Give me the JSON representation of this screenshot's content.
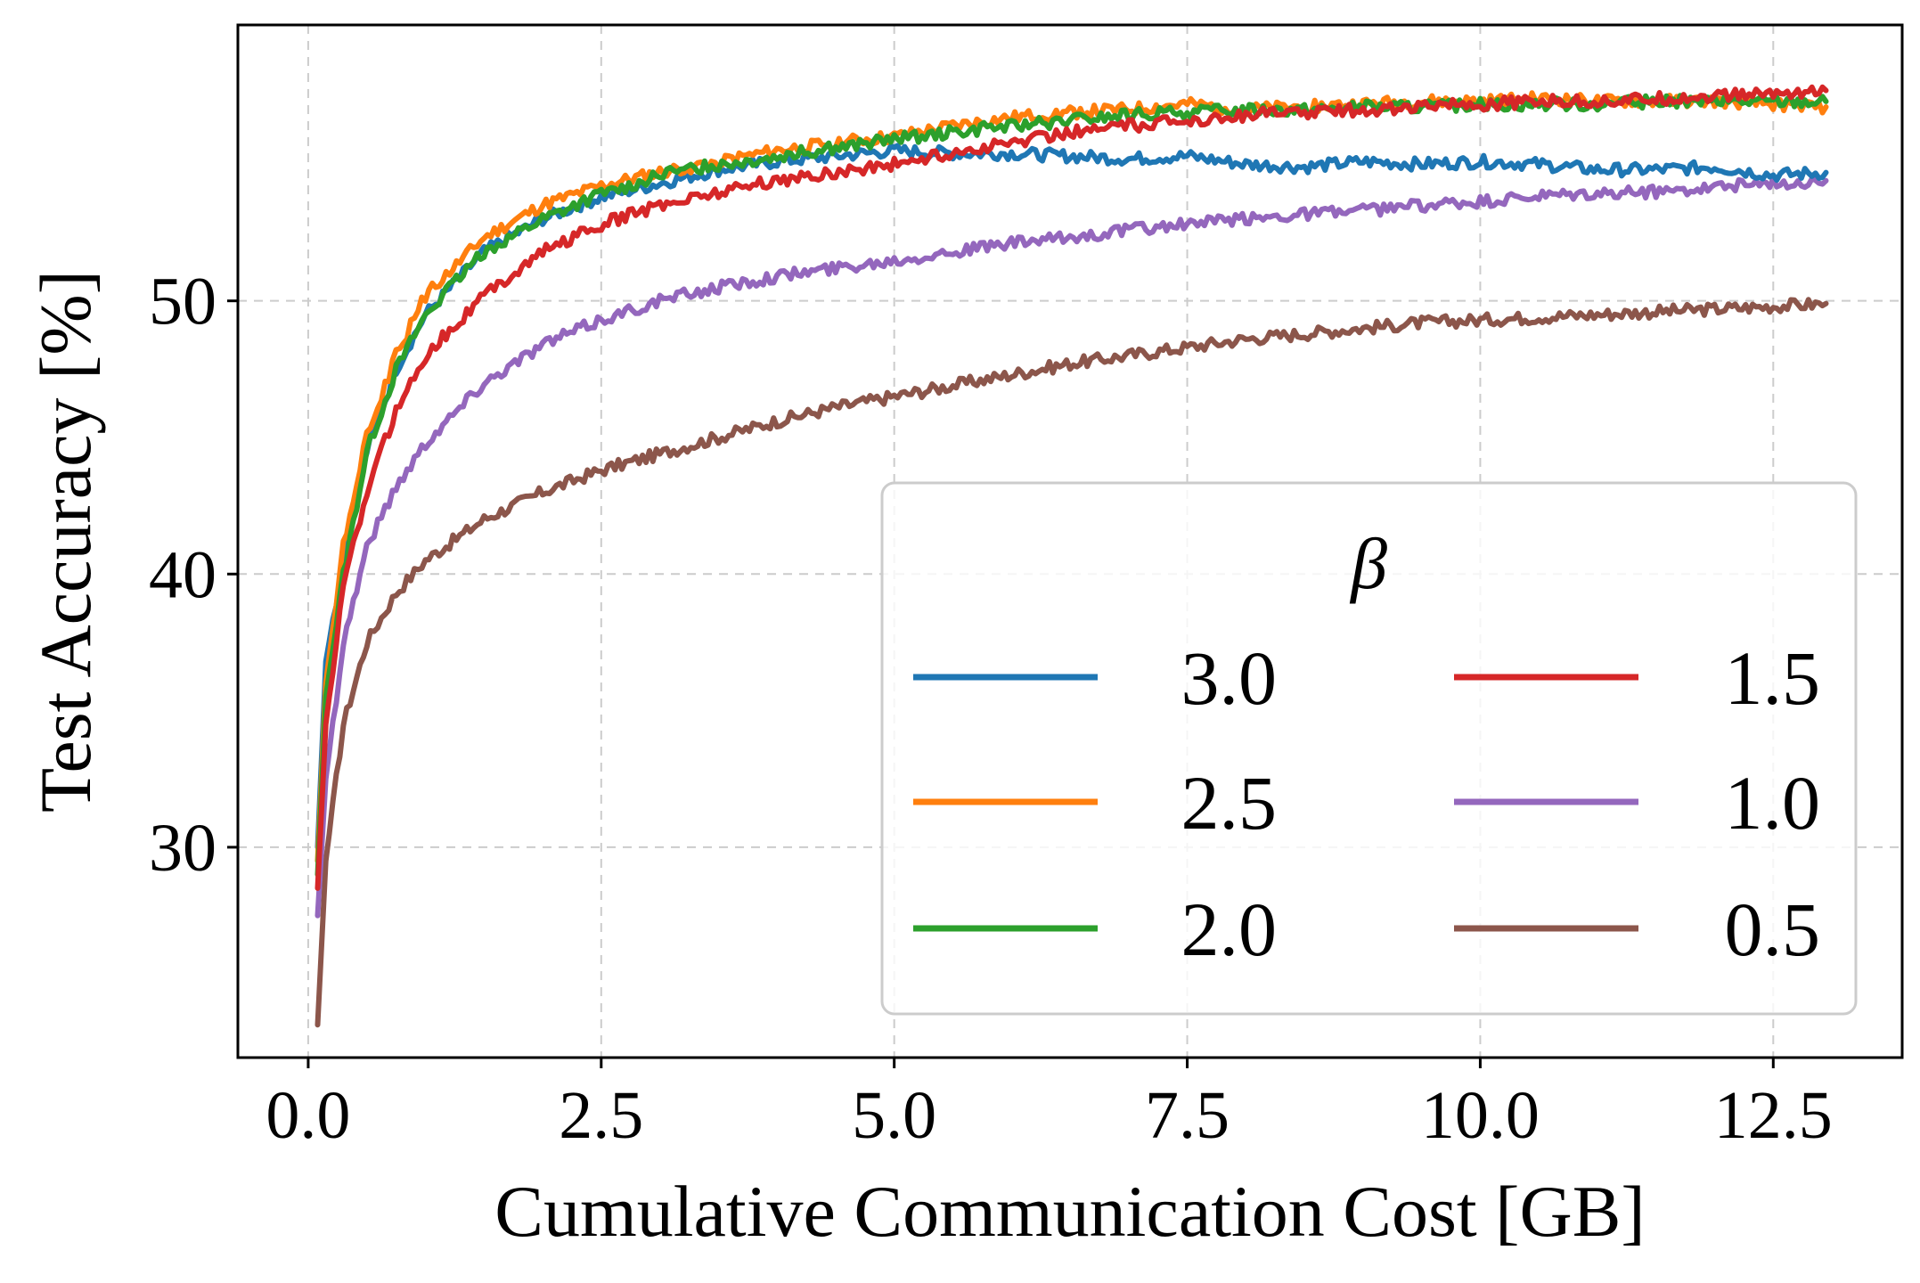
{
  "chart_data": {
    "type": "line",
    "xlabel": "Cumulative Communication Cost [GB]",
    "ylabel": "Test Accuracy [%]",
    "xlim": [
      -0.6,
      13.6
    ],
    "ylim": [
      22.3,
      60.1
    ],
    "xticks": [
      0.0,
      2.5,
      5.0,
      7.5,
      10.0,
      12.5
    ],
    "xtick_labels": [
      "0.0",
      "2.5",
      "5.0",
      "7.5",
      "10.0",
      "12.5"
    ],
    "yticks": [
      30,
      40,
      50
    ],
    "ytick_labels": [
      "30",
      "40",
      "50"
    ],
    "grid": true,
    "legend": {
      "title": "β",
      "placement": "lower right",
      "columns": 2
    },
    "series": [
      {
        "name": "3.0",
        "color": "#1f77b4",
        "x": [
          0.08,
          0.15,
          0.3,
          0.5,
          0.75,
          1.0,
          1.5,
          2.0,
          2.5,
          3.0,
          3.5,
          4.0,
          4.5,
          5.0,
          5.5,
          6.0,
          6.5,
          7.0,
          7.5,
          8.0,
          8.5,
          9.0,
          9.5,
          10.0,
          10.5,
          11.0,
          11.5,
          12.0,
          12.5,
          12.95
        ],
        "y": [
          30.0,
          36.8,
          40.5,
          44.5,
          47.5,
          49.5,
          51.8,
          53.0,
          53.8,
          54.3,
          54.8,
          55.1,
          55.3,
          55.5,
          55.4,
          55.4,
          55.3,
          55.2,
          55.3,
          55.0,
          54.9,
          55.1,
          55.0,
          55.1,
          55.0,
          54.8,
          54.8,
          54.9,
          54.6,
          54.7
        ]
      },
      {
        "name": "2.5",
        "color": "#ff7f0e",
        "x": [
          0.08,
          0.15,
          0.3,
          0.5,
          0.75,
          1.0,
          1.5,
          2.0,
          2.5,
          3.0,
          3.5,
          4.0,
          4.5,
          5.0,
          5.5,
          6.0,
          6.5,
          7.0,
          7.5,
          8.0,
          8.5,
          9.0,
          9.5,
          10.0,
          10.5,
          11.0,
          11.5,
          12.0,
          12.5,
          12.95
        ],
        "y": [
          29.5,
          36.0,
          41.0,
          45.0,
          48.0,
          50.2,
          52.3,
          53.5,
          54.2,
          54.7,
          55.1,
          55.5,
          55.8,
          56.0,
          56.4,
          56.7,
          56.9,
          57.0,
          57.2,
          57.0,
          57.1,
          57.2,
          57.3,
          57.3,
          57.4,
          57.3,
          57.3,
          57.3,
          57.2,
          57.1
        ]
      },
      {
        "name": "2.0",
        "color": "#2ca02c",
        "x": [
          0.08,
          0.15,
          0.3,
          0.5,
          0.75,
          1.0,
          1.5,
          2.0,
          2.5,
          3.0,
          3.5,
          4.0,
          4.5,
          5.0,
          5.5,
          6.0,
          6.5,
          7.0,
          7.5,
          8.0,
          8.5,
          9.0,
          9.5,
          10.0,
          10.5,
          11.0,
          11.5,
          12.0,
          12.5,
          12.95
        ],
        "y": [
          29.0,
          35.5,
          40.0,
          44.5,
          47.5,
          49.5,
          51.8,
          53.0,
          53.9,
          54.6,
          55.0,
          55.3,
          55.6,
          55.9,
          56.2,
          56.4,
          56.6,
          56.8,
          56.9,
          57.0,
          57.0,
          57.1,
          57.1,
          57.2,
          57.2,
          57.2,
          57.3,
          57.3,
          57.3,
          57.3
        ]
      },
      {
        "name": "1.5",
        "color": "#d62728",
        "x": [
          0.08,
          0.15,
          0.3,
          0.5,
          0.75,
          1.0,
          1.5,
          2.0,
          2.5,
          3.0,
          3.5,
          4.0,
          4.5,
          5.0,
          5.5,
          6.0,
          6.5,
          7.0,
          7.5,
          8.0,
          8.5,
          9.0,
          9.5,
          10.0,
          10.5,
          11.0,
          11.5,
          12.0,
          12.5,
          12.95
        ],
        "y": [
          28.5,
          34.5,
          39.5,
          43.0,
          46.0,
          48.0,
          50.2,
          51.8,
          52.8,
          53.5,
          54.0,
          54.4,
          54.7,
          55.0,
          55.4,
          55.8,
          56.2,
          56.4,
          56.6,
          56.8,
          56.9,
          57.0,
          57.1,
          57.2,
          57.3,
          57.3,
          57.4,
          57.5,
          57.6,
          57.7
        ]
      },
      {
        "name": "1.0",
        "color": "#9467bd",
        "x": [
          0.08,
          0.15,
          0.3,
          0.5,
          0.75,
          1.0,
          1.5,
          2.0,
          2.5,
          3.0,
          3.5,
          4.0,
          4.5,
          5.0,
          5.5,
          6.0,
          6.5,
          7.0,
          7.5,
          8.0,
          8.5,
          9.0,
          9.5,
          10.0,
          10.5,
          11.0,
          11.5,
          12.0,
          12.5,
          12.95
        ],
        "y": [
          27.5,
          32.5,
          37.5,
          41.0,
          43.2,
          44.8,
          47.0,
          48.4,
          49.3,
          50.0,
          50.5,
          50.9,
          51.2,
          51.5,
          51.8,
          52.1,
          52.3,
          52.6,
          52.8,
          53.0,
          53.2,
          53.3,
          53.5,
          53.6,
          53.8,
          53.9,
          54.0,
          54.2,
          54.3,
          54.4
        ]
      },
      {
        "name": "0.5",
        "color": "#8c564b",
        "x": [
          0.08,
          0.15,
          0.3,
          0.5,
          0.75,
          1.0,
          1.5,
          2.0,
          2.5,
          3.0,
          3.5,
          4.0,
          4.5,
          5.0,
          5.5,
          6.0,
          6.5,
          7.0,
          7.5,
          8.0,
          8.5,
          9.0,
          9.5,
          10.0,
          10.5,
          11.0,
          11.5,
          12.0,
          12.5,
          12.95
        ],
        "y": [
          23.5,
          29.5,
          34.5,
          37.5,
          39.3,
          40.5,
          42.0,
          43.0,
          43.8,
          44.4,
          45.0,
          45.6,
          46.1,
          46.5,
          46.9,
          47.3,
          47.7,
          48.0,
          48.3,
          48.6,
          48.8,
          49.0,
          49.2,
          49.3,
          49.4,
          49.5,
          49.6,
          49.7,
          49.8,
          49.9
        ]
      }
    ]
  }
}
